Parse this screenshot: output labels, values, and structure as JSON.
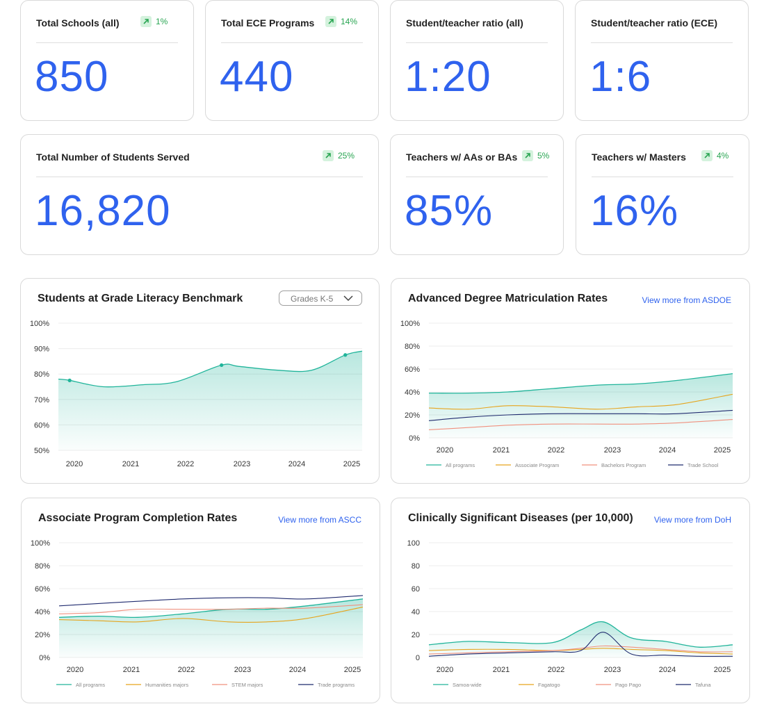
{
  "stats": {
    "total_schools": {
      "label": "Total Schools (all)",
      "value": "850",
      "change": "1%"
    },
    "total_ece": {
      "label": "Total ECE Programs",
      "value": "440",
      "change": "14%"
    },
    "ratio_all": {
      "label": "Student/teacher ratio (all)",
      "value": "1:20"
    },
    "ratio_ece": {
      "label": "Student/teacher ratio (ECE)",
      "value": "1:6"
    },
    "students_served": {
      "label": "Total Number of Students Served",
      "value": "16,820",
      "change": "25%"
    },
    "teachers_aa_ba": {
      "label": "Teachers w/ AAs or BAs",
      "value": "85%",
      "change": "5%"
    },
    "teachers_masters": {
      "label": "Teachers w/ Masters",
      "value": "16%",
      "change": "4%"
    }
  },
  "colors": {
    "accent": "#2f62ee",
    "positive": "#29a552",
    "teal": "#20b49a",
    "orange": "#e6a41c",
    "salmon": "#f0907e",
    "navy": "#1f2a6e"
  },
  "chart_data": [
    {
      "id": "literacy",
      "type": "area",
      "title": "Students at Grade Literacy Benchmark",
      "dropdown": "Grades K-5",
      "xlabel": "",
      "ylabel": "",
      "ylim": [
        50,
        100
      ],
      "y_ticks": [
        "100%",
        "90%",
        "80%",
        "70%",
        "60%",
        "50%"
      ],
      "y_tick_values": [
        100,
        90,
        80,
        70,
        60,
        50
      ],
      "x_labels": [
        "2020",
        "2021",
        "2022",
        "2023",
        "2024",
        "2025"
      ],
      "x": [
        2019.8,
        2020.0,
        2020.6,
        2021.3,
        2021.9,
        2022.7,
        2023.0,
        2023.7,
        2024.3,
        2024.9,
        2025.2
      ],
      "series": [
        {
          "name": "Students at benchmark",
          "color": "#20b49a",
          "fill": true,
          "values": [
            78,
            77.5,
            75,
            75.8,
            77,
            83.5,
            83,
            81.5,
            81.5,
            87.5,
            89
          ]
        }
      ],
      "markers": [
        [
          2020.0,
          77.5
        ],
        [
          2022.7,
          83.5
        ],
        [
          2024.9,
          87.5
        ]
      ]
    },
    {
      "id": "matriculation",
      "type": "line",
      "title": "Advanced Degree Matriculation Rates",
      "link": "View more from ASDOE",
      "ylim": [
        0,
        100
      ],
      "y_ticks": [
        "100%",
        "80%",
        "60%",
        "40%",
        "20%",
        "0%"
      ],
      "y_tick_values": [
        100,
        80,
        60,
        40,
        20,
        0
      ],
      "x_labels": [
        "2020",
        "2021",
        "2022",
        "2023",
        "2024",
        "2025"
      ],
      "x": [
        2019.8,
        2020.5,
        2021.2,
        2022.0,
        2022.8,
        2023.5,
        2024.2,
        2025.2
      ],
      "series": [
        {
          "name": "All programs",
          "color": "#20b49a",
          "fill": true,
          "values": [
            39,
            39,
            40,
            43,
            46,
            47,
            50,
            56
          ]
        },
        {
          "name": "Associate Program",
          "color": "#e6a41c",
          "values": [
            26,
            25,
            28,
            27,
            25,
            27,
            29,
            38
          ]
        },
        {
          "name": "Bachelors Program",
          "color": "#f0907e",
          "values": [
            7,
            9,
            11,
            12,
            12,
            12,
            13,
            16
          ]
        },
        {
          "name": "Trade School",
          "color": "#1f2a6e",
          "values": [
            15,
            18,
            20,
            21,
            21,
            21,
            21,
            24
          ]
        }
      ]
    },
    {
      "id": "associate",
      "type": "line",
      "title": "Associate Program Completion Rates",
      "link": "View more from ASCC",
      "ylim": [
        0,
        100
      ],
      "y_ticks": [
        "100%",
        "80%",
        "60%",
        "40%",
        "20%",
        "0%"
      ],
      "y_tick_values": [
        100,
        80,
        60,
        40,
        20,
        0
      ],
      "x_labels": [
        "2020",
        "2021",
        "2022",
        "2023",
        "2024",
        "2025"
      ],
      "x": [
        2019.8,
        2020.5,
        2021.2,
        2022.0,
        2022.8,
        2023.5,
        2024.2,
        2025.2
      ],
      "series": [
        {
          "name": "All programs",
          "color": "#20b49a",
          "fill": true,
          "values": [
            35,
            36,
            35,
            38,
            42,
            42,
            45,
            51
          ]
        },
        {
          "name": "Humanities majors",
          "color": "#e6a41c",
          "values": [
            33,
            32,
            31,
            34,
            31,
            31,
            34,
            44
          ]
        },
        {
          "name": "STEM majors",
          "color": "#f0907e",
          "values": [
            38,
            39,
            42,
            42,
            42,
            43,
            43,
            46
          ]
        },
        {
          "name": "Trade programs",
          "color": "#1f2a6e",
          "values": [
            45,
            47,
            49,
            51,
            52,
            52,
            51,
            54
          ]
        }
      ]
    },
    {
      "id": "diseases",
      "type": "line",
      "title": "Clinically Significant Diseases (per 10,000)",
      "link": "View more from DoH",
      "ylim": [
        0,
        100
      ],
      "y_ticks": [
        "100",
        "80",
        "60",
        "40",
        "20",
        "0"
      ],
      "y_tick_values": [
        100,
        80,
        60,
        40,
        20,
        0
      ],
      "x_labels": [
        "2020",
        "2021",
        "2022",
        "2023",
        "2024",
        "2025"
      ],
      "x": [
        2019.8,
        2020.5,
        2021.2,
        2022.0,
        2022.5,
        2022.9,
        2023.4,
        2024.0,
        2024.6,
        2025.2
      ],
      "series": [
        {
          "name": "Samoa-wide",
          "color": "#20b49a",
          "fill": true,
          "values": [
            11,
            14,
            13,
            13,
            24,
            31,
            17,
            14,
            9,
            11
          ]
        },
        {
          "name": "Fagatogo",
          "color": "#e6a41c",
          "values": [
            6,
            7,
            7,
            6,
            7,
            8,
            7,
            6,
            4,
            3
          ]
        },
        {
          "name": "Pago Pago",
          "color": "#f0907e",
          "values": [
            3,
            4,
            5,
            6,
            8,
            10,
            9,
            7,
            5,
            5
          ]
        },
        {
          "name": "Tafuna",
          "color": "#1f2a6e",
          "values": [
            1,
            3,
            4,
            5,
            6,
            22,
            3,
            2,
            1,
            1
          ]
        }
      ]
    }
  ]
}
